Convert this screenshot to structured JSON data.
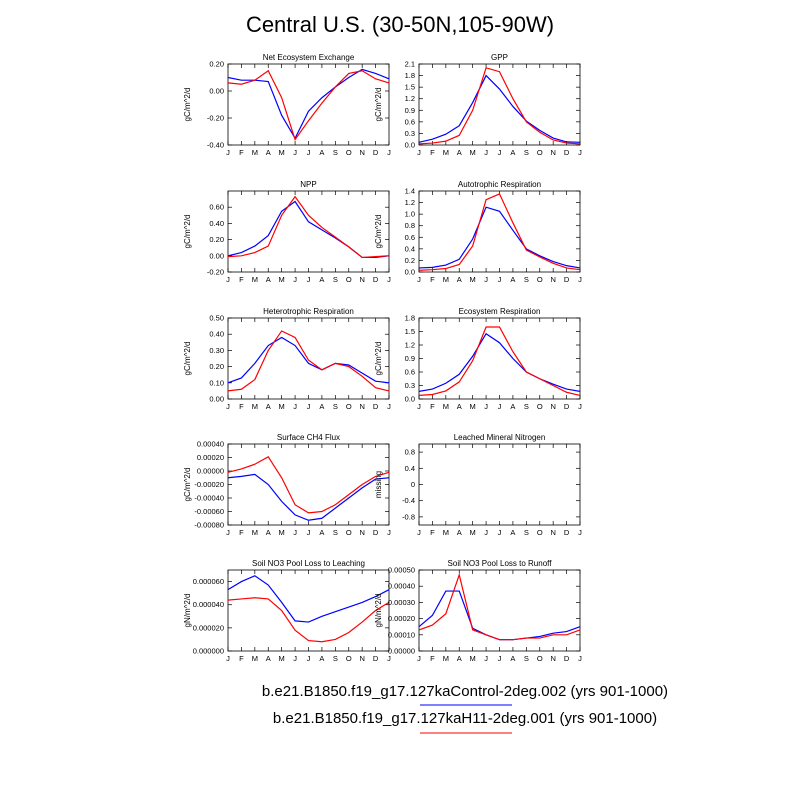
{
  "title": "Central U.S. (30-50N,105-90W)",
  "months": [
    "J",
    "F",
    "M",
    "A",
    "M",
    "J",
    "J",
    "A",
    "S",
    "O",
    "N",
    "D",
    "J"
  ],
  "legend": [
    {
      "label": "b.e21.B1850.f19_g17.127kaControl-2deg.002 (yrs 901-1000)",
      "color": "#0000ff"
    },
    {
      "label": "b.e21.B1850.f19_g17.127kaH11-2deg.001 (yrs 901-1000)",
      "color": "#ff0000"
    }
  ],
  "chart_data": [
    {
      "type": "line",
      "title": "Net Ecosystem Exchange",
      "ylabel": "gC/m^2/d",
      "ylim": [
        -0.4,
        0.2
      ],
      "yticks": [
        "-0.40",
        "-0.20",
        "0.00",
        "0.20"
      ],
      "series": [
        {
          "color": "#0000ff",
          "values": [
            0.1,
            0.08,
            0.08,
            0.07,
            -0.18,
            -0.35,
            -0.15,
            -0.05,
            0.03,
            0.1,
            0.16,
            0.13,
            0.09
          ]
        },
        {
          "color": "#ff0000",
          "values": [
            0.06,
            0.05,
            0.08,
            0.15,
            -0.05,
            -0.36,
            -0.22,
            -0.09,
            0.03,
            0.13,
            0.15,
            0.09,
            0.06
          ]
        }
      ]
    },
    {
      "type": "line",
      "title": "GPP",
      "ylabel": "gC/m^2/d",
      "ylim": [
        0,
        2.1
      ],
      "yticks": [
        "0.0",
        "0.3",
        "0.6",
        "0.9",
        "1.2",
        "1.5",
        "1.8",
        "2.1"
      ],
      "series": [
        {
          "color": "#0000ff",
          "values": [
            0.07,
            0.15,
            0.28,
            0.5,
            1.1,
            1.8,
            1.45,
            1.0,
            0.62,
            0.38,
            0.18,
            0.08,
            0.07
          ]
        },
        {
          "color": "#ff0000",
          "values": [
            0.03,
            0.05,
            0.1,
            0.25,
            0.9,
            2.0,
            1.9,
            1.2,
            0.6,
            0.33,
            0.13,
            0.05,
            0.03
          ]
        }
      ]
    },
    {
      "type": "line",
      "title": "NPP",
      "ylabel": "gC/m^2/d",
      "ylim": [
        -0.2,
        0.8
      ],
      "yticks": [
        "-0.20",
        "0.00",
        "0.20",
        "0.40",
        "0.60"
      ],
      "series": [
        {
          "color": "#0000ff",
          "values": [
            0.0,
            0.04,
            0.12,
            0.25,
            0.55,
            0.67,
            0.42,
            0.32,
            0.22,
            0.11,
            -0.02,
            -0.02,
            0.0
          ]
        },
        {
          "color": "#ff0000",
          "values": [
            -0.01,
            0.0,
            0.04,
            0.12,
            0.5,
            0.73,
            0.5,
            0.35,
            0.23,
            0.11,
            -0.02,
            -0.01,
            0.0
          ]
        }
      ]
    },
    {
      "type": "line",
      "title": "Autotrophic Respiration",
      "ylabel": "gC/m^2/d",
      "ylim": [
        0,
        1.4
      ],
      "yticks": [
        "0.0",
        "0.2",
        "0.4",
        "0.6",
        "0.8",
        "1.0",
        "1.2",
        "1.4"
      ],
      "series": [
        {
          "color": "#0000ff",
          "values": [
            0.07,
            0.08,
            0.12,
            0.22,
            0.57,
            1.12,
            1.05,
            0.72,
            0.4,
            0.28,
            0.18,
            0.11,
            0.07
          ]
        },
        {
          "color": "#ff0000",
          "values": [
            0.03,
            0.04,
            0.06,
            0.13,
            0.45,
            1.25,
            1.35,
            0.85,
            0.38,
            0.26,
            0.15,
            0.07,
            0.04
          ]
        }
      ]
    },
    {
      "type": "line",
      "title": "Heterotrophic Respiration",
      "ylabel": "gC/m^2/d",
      "ylim": [
        0,
        0.5
      ],
      "yticks": [
        "0.00",
        "0.10",
        "0.20",
        "0.30",
        "0.40",
        "0.50"
      ],
      "series": [
        {
          "color": "#0000ff",
          "values": [
            0.1,
            0.13,
            0.22,
            0.33,
            0.38,
            0.33,
            0.22,
            0.18,
            0.22,
            0.21,
            0.16,
            0.11,
            0.1
          ]
        },
        {
          "color": "#ff0000",
          "values": [
            0.05,
            0.06,
            0.12,
            0.3,
            0.42,
            0.38,
            0.24,
            0.18,
            0.22,
            0.2,
            0.14,
            0.07,
            0.05
          ]
        }
      ]
    },
    {
      "type": "line",
      "title": "Ecosystem Respiration",
      "ylabel": "gC/m^2/d",
      "ylim": [
        0,
        1.8
      ],
      "yticks": [
        "0.0",
        "0.3",
        "0.6",
        "0.9",
        "1.2",
        "1.5",
        "1.8"
      ],
      "series": [
        {
          "color": "#0000ff",
          "values": [
            0.17,
            0.22,
            0.35,
            0.55,
            0.95,
            1.45,
            1.25,
            0.9,
            0.6,
            0.45,
            0.33,
            0.22,
            0.17
          ]
        },
        {
          "color": "#ff0000",
          "values": [
            0.08,
            0.1,
            0.18,
            0.38,
            0.85,
            1.6,
            1.6,
            1.05,
            0.6,
            0.45,
            0.3,
            0.15,
            0.08
          ]
        }
      ]
    },
    {
      "type": "line",
      "title": "Surface CH4 Flux",
      "ylabel": "gC/m^2/d",
      "ylim": [
        -0.0008,
        0.0004
      ],
      "yticks": [
        "-0.00080",
        "-0.00060",
        "-0.00040",
        "-0.00020",
        "0.00000",
        "0.00020",
        "0.00040"
      ],
      "series": [
        {
          "color": "#0000ff",
          "values": [
            -0.0001,
            -8e-05,
            -5e-05,
            -0.0002,
            -0.00045,
            -0.00065,
            -0.00073,
            -0.0007,
            -0.00055,
            -0.0004,
            -0.00025,
            -0.00012,
            -0.0001
          ]
        },
        {
          "color": "#ff0000",
          "values": [
            -2e-05,
            3e-05,
            0.0001,
            0.00021,
            -0.0001,
            -0.0005,
            -0.00062,
            -0.0006,
            -0.0005,
            -0.00035,
            -0.0002,
            -8e-05,
            -2e-05
          ]
        }
      ]
    },
    {
      "type": "line",
      "title": "Leached Mineral Nitrogen",
      "ylabel": "missing",
      "ylim": [
        -1.0,
        1.0
      ],
      "yticks": [
        "-0.8",
        "-0.4",
        "0",
        "0.4",
        "0.8"
      ],
      "series": []
    },
    {
      "type": "line",
      "title": "Soil NO3 Pool Loss to Leaching",
      "ylabel": "gN/m^2/d",
      "ylim": [
        0,
        7e-05
      ],
      "yticks": [
        "0.000000",
        "0.000020",
        "0.000040",
        "0.000060"
      ],
      "series": [
        {
          "color": "#0000ff",
          "values": [
            5.3e-05,
            6e-05,
            6.5e-05,
            5.7e-05,
            4.2e-05,
            2.6e-05,
            2.5e-05,
            3e-05,
            3.4e-05,
            3.8e-05,
            4.2e-05,
            4.7e-05,
            5.3e-05
          ]
        },
        {
          "color": "#ff0000",
          "values": [
            4.4e-05,
            4.5e-05,
            4.6e-05,
            4.5e-05,
            3.5e-05,
            1.8e-05,
            9e-06,
            8e-06,
            1e-05,
            1.6e-05,
            2.5e-05,
            3.5e-05,
            4.2e-05
          ]
        }
      ]
    },
    {
      "type": "line",
      "title": "Soil NO3 Pool Loss to Runoff",
      "ylabel": "gN/m^2/d",
      "ylim": [
        0,
        0.0005
      ],
      "yticks": [
        "0.00000",
        "0.00010",
        "0.00020",
        "0.00030",
        "0.00040",
        "0.00050"
      ],
      "series": [
        {
          "color": "#0000ff",
          "values": [
            0.00015,
            0.00022,
            0.00037,
            0.00037,
            0.00014,
            0.0001,
            7e-05,
            7e-05,
            8e-05,
            9e-05,
            0.00011,
            0.00012,
            0.00015
          ]
        },
        {
          "color": "#ff0000",
          "values": [
            0.00013,
            0.00016,
            0.00023,
            0.00047,
            0.00013,
            0.0001,
            7e-05,
            7e-05,
            8e-05,
            8e-05,
            0.0001,
            0.0001,
            0.00013
          ]
        }
      ]
    }
  ]
}
